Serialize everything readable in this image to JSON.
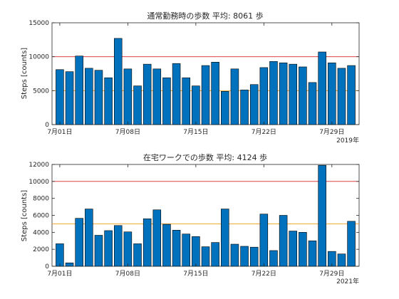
{
  "chart_data": [
    {
      "type": "bar",
      "title": "通常勤務時の歩数 平均: 8061 歩",
      "ylabel": "Steps [counts]",
      "xlabel": "",
      "year_label": "2019年",
      "ylim": [
        0,
        15000
      ],
      "yticks": [
        0,
        5000,
        10000,
        15000
      ],
      "grid": false,
      "x_start_day": 1,
      "xticks": [
        {
          "day": 1,
          "label": "7月01日"
        },
        {
          "day": 8,
          "label": "7月08日"
        },
        {
          "day": 15,
          "label": "7月15日"
        },
        {
          "day": 22,
          "label": "7月22日"
        },
        {
          "day": 29,
          "label": "7月29日"
        }
      ],
      "reference_lines": [
        {
          "value": 10000,
          "color": "#d62728"
        },
        {
          "value": 5000,
          "color": "#f0a020"
        }
      ],
      "bar_color": "#0072bd",
      "values": [
        8100,
        7800,
        10100,
        8300,
        8000,
        6900,
        12700,
        8200,
        5700,
        8900,
        8200,
        6900,
        9000,
        6900,
        5700,
        8700,
        9200,
        4900,
        8200,
        5100,
        5900,
        8400,
        9300,
        9100,
        8900,
        8500,
        6200,
        10700,
        9100,
        8300,
        8700
      ]
    },
    {
      "type": "bar",
      "title": "在宅ワークでの歩数 平均: 4124 歩",
      "ylabel": "Steps [counts]",
      "xlabel": "",
      "year_label": "2021年",
      "ylim": [
        0,
        12000
      ],
      "yticks": [
        0,
        2000,
        4000,
        6000,
        8000,
        10000,
        12000
      ],
      "grid": false,
      "x_start_day": 1,
      "xticks": [
        {
          "day": 1,
          "label": "7月01日"
        },
        {
          "day": 8,
          "label": "7月08日"
        },
        {
          "day": 15,
          "label": "7月15日"
        },
        {
          "day": 22,
          "label": "7月22日"
        },
        {
          "day": 29,
          "label": "7月29日"
        }
      ],
      "reference_lines": [
        {
          "value": 10000,
          "color": "#d62728"
        },
        {
          "value": 5000,
          "color": "#f0a020"
        }
      ],
      "bar_color": "#0072bd",
      "values": [
        2650,
        400,
        5650,
        6750,
        3650,
        4200,
        4800,
        4050,
        2650,
        5600,
        6650,
        4950,
        4250,
        3800,
        3500,
        2300,
        2800,
        6750,
        2600,
        2350,
        2250,
        6150,
        1850,
        6000,
        4150,
        4000,
        3000,
        11900,
        1750,
        1450,
        5300
      ]
    }
  ]
}
